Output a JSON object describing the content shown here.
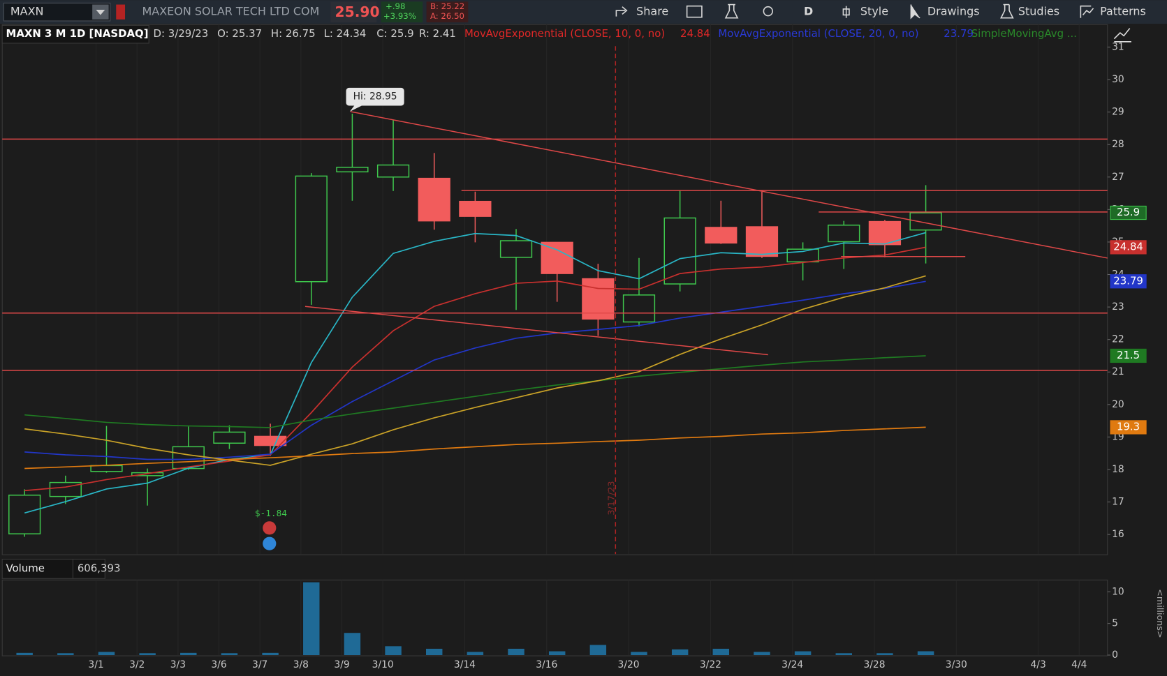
{
  "toolbar": {
    "symbol": "MAXN",
    "company": "MAXEON SOLAR TECH LTD COM",
    "last": "25.90",
    "change": "+.98",
    "change_pct": "+3.93%",
    "bid": "B: 25.22",
    "ask": "A: 26.50",
    "buttons": [
      "Share",
      "D",
      "Style",
      "Drawings",
      "Studies",
      "Patterns"
    ]
  },
  "header": {
    "title": "MAXN 3 M 1D [NASDAQ]",
    "fields": [
      "D: 3/29/23",
      "O: 25.37",
      "H: 26.75",
      "L: 24.34",
      "C: 25.9",
      "R: 2.41"
    ],
    "studies": [
      {
        "name": "MovAvgExponential (CLOSE, 10, 0, no)",
        "value": "24.84"
      },
      {
        "name": "MovAvgExponential (CLOSE, 20, 0, no)",
        "value": "23.79"
      },
      {
        "name": "SimpleMovingAvg ..."
      }
    ]
  },
  "annotations": {
    "high": "Hi: 28.95",
    "pnl": "$-1.84",
    "marker": "3/17/23",
    "volume_label": "Volume",
    "volume_readout": "606,393",
    "volume_units": "<millions>"
  },
  "chart_data": [
    {
      "type": "candlestick",
      "categories": [
        null,
        null,
        "3/1",
        "3/2",
        "3/3",
        "3/6",
        "3/7",
        "3/8",
        "3/9",
        "3/10",
        null,
        "3/14",
        null,
        "3/16",
        null,
        "3/20",
        null,
        "3/22",
        null,
        "3/24",
        null,
        "3/28",
        null,
        "3/30",
        null,
        "4/3",
        "4/4"
      ],
      "open": [
        16.02,
        17.17,
        17.94,
        17.81,
        18.03,
        18.81,
        19.02,
        23.78,
        27.16,
        27.0,
        26.96,
        26.25,
        24.53,
        24.99,
        23.87,
        22.54,
        23.71,
        25.45,
        25.47,
        24.39,
        25.01,
        25.63,
        25.37,
        null,
        null,
        null,
        null
      ],
      "high": [
        17.39,
        17.81,
        19.34,
        18.03,
        19.32,
        19.36,
        19.41,
        27.12,
        28.95,
        28.76,
        27.74,
        26.55,
        25.4,
        24.99,
        24.33,
        24.51,
        26.57,
        26.27,
        26.55,
        24.99,
        25.65,
        25.68,
        26.75,
        null,
        null,
        null,
        null
      ],
      "low": [
        15.93,
        16.94,
        17.9,
        16.89,
        17.99,
        18.63,
        18.42,
        23.07,
        26.27,
        26.57,
        25.38,
        24.99,
        22.91,
        23.16,
        22.11,
        22.4,
        23.48,
        24.94,
        24.51,
        23.82,
        24.17,
        24.53,
        24.34,
        null,
        null,
        null,
        null
      ],
      "close": [
        17.21,
        17.6,
        18.12,
        17.9,
        18.7,
        19.15,
        18.74,
        27.03,
        27.3,
        27.37,
        25.65,
        25.79,
        25.04,
        24.03,
        22.63,
        23.37,
        25.74,
        24.97,
        24.56,
        24.78,
        25.52,
        24.92,
        25.9,
        null,
        null,
        null,
        null
      ],
      "up_color": "#3fc84d",
      "down_color": "#f25c5c",
      "close_tag_color": "#1e6b26",
      "series": [
        {
          "color": "#29b6c6",
          "values": [
            16.66,
            17.01,
            17.4,
            17.58,
            18.04,
            18.31,
            18.45,
            21.29,
            23.3,
            24.65,
            25.02,
            25.26,
            25.2,
            24.76,
            24.12,
            23.87,
            24.49,
            24.67,
            24.62,
            24.71,
            24.97,
            24.94,
            25.29,
            null,
            null,
            null,
            null
          ]
        },
        {
          "name": "MovAvgExponential (CLOSE, 10, 0, no)",
          "color": "#c8302e",
          "tag": true,
          "values": [
            17.35,
            17.46,
            17.69,
            17.87,
            18.08,
            18.26,
            18.45,
            19.75,
            21.15,
            22.27,
            23.02,
            23.41,
            23.73,
            23.8,
            23.57,
            23.55,
            24.03,
            24.17,
            24.23,
            24.37,
            24.51,
            24.6,
            24.84,
            null,
            null,
            null,
            null
          ]
        },
        {
          "name": "MovAvgExponential (CLOSE, 20, 0, no)",
          "color": "#2236c8",
          "tag": true,
          "values": [
            18.54,
            18.45,
            18.4,
            18.31,
            18.31,
            18.38,
            18.47,
            19.36,
            20.09,
            20.73,
            21.37,
            21.74,
            22.04,
            22.2,
            22.31,
            22.43,
            22.66,
            22.84,
            23.02,
            23.21,
            23.41,
            23.57,
            23.79,
            null,
            null,
            null,
            null
          ]
        },
        {
          "name": "SimpleMovingAvg ...",
          "color": "#1f7a22",
          "tag": true,
          "values": [
            19.68,
            19.57,
            19.45,
            19.38,
            19.34,
            19.32,
            19.29,
            19.52,
            19.71,
            19.89,
            20.07,
            20.25,
            20.44,
            20.6,
            20.73,
            20.87,
            20.99,
            21.1,
            21.21,
            21.31,
            21.37,
            21.44,
            21.5,
            null,
            null,
            null,
            null
          ]
        },
        {
          "color": "#c9a227",
          "values": [
            19.25,
            19.09,
            18.9,
            18.65,
            18.45,
            18.29,
            18.13,
            18.47,
            18.79,
            19.22,
            19.59,
            19.91,
            20.21,
            20.51,
            20.73,
            21.01,
            21.54,
            22.02,
            22.45,
            22.93,
            23.3,
            23.59,
            23.96,
            null,
            null,
            null,
            null
          ]
        },
        {
          "color": "#e07a10",
          "tag": true,
          "values": [
            18.03,
            18.08,
            18.13,
            18.19,
            18.24,
            18.31,
            18.36,
            18.42,
            18.49,
            18.54,
            18.63,
            18.7,
            18.77,
            18.81,
            18.86,
            18.9,
            18.97,
            19.02,
            19.09,
            19.13,
            19.2,
            19.25,
            19.3,
            null,
            null,
            null,
            null
          ]
        }
      ],
      "ylim": [
        15.4,
        31.69
      ],
      "yticks": [
        16,
        17,
        18,
        19,
        20,
        21,
        22,
        23,
        24,
        25,
        26,
        27,
        28,
        29,
        30,
        31
      ],
      "grid": "x"
    },
    {
      "type": "bar",
      "color": "#1f6a96",
      "values": [
        0.35,
        0.3,
        0.5,
        0.3,
        0.35,
        0.3,
        0.35,
        11.5,
        3.5,
        1.4,
        1.0,
        0.5,
        1.0,
        0.6,
        1.6,
        0.5,
        0.9,
        1.0,
        0.5,
        0.6,
        0.3,
        0.3,
        0.606393,
        null,
        null,
        null,
        null
      ],
      "ylim": [
        0,
        11.86
      ],
      "yticks": [
        0,
        5,
        10
      ]
    }
  ]
}
